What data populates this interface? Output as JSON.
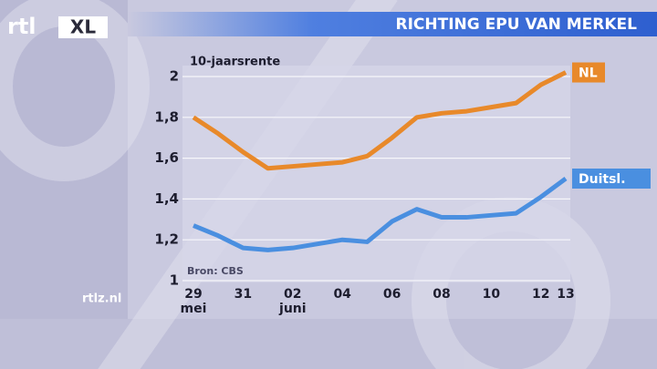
{
  "logo": {
    "left": "rtl",
    "right": "XL"
  },
  "website": "rtlz.nl",
  "chart_data": {
    "type": "line",
    "title": "RICHTING EPU VAN MERKEL",
    "subtitle": "10-jaarsrente",
    "source": "Bron: CBS",
    "categories": [
      "29 mei",
      null,
      "31",
      null,
      "02 juni",
      null,
      "04",
      null,
      "06",
      null,
      "08",
      null,
      "10",
      null,
      "12",
      "13"
    ],
    "series": [
      {
        "name": "NL",
        "color": "#e8892a",
        "values": [
          1.8,
          1.72,
          1.63,
          1.55,
          1.56,
          1.57,
          1.58,
          1.61,
          1.7,
          1.8,
          1.82,
          1.83,
          1.85,
          1.87,
          1.96,
          2.02
        ]
      },
      {
        "name": "Duitsl.",
        "color": "#4a8fe0",
        "values": [
          1.27,
          1.22,
          1.16,
          1.15,
          1.16,
          1.18,
          1.2,
          1.19,
          1.29,
          1.35,
          1.31,
          1.31,
          1.32,
          1.33,
          1.41,
          1.5
        ]
      }
    ],
    "ylim": [
      1,
      2
    ],
    "yticks": [
      1,
      {
        "value": 1.2,
        "label": "1,2"
      },
      {
        "value": 1.4,
        "label": "1,4"
      },
      {
        "value": 1.6,
        "label": "1,6"
      },
      {
        "value": 1.8,
        "label": "1,8"
      },
      2
    ],
    "grid": true
  }
}
